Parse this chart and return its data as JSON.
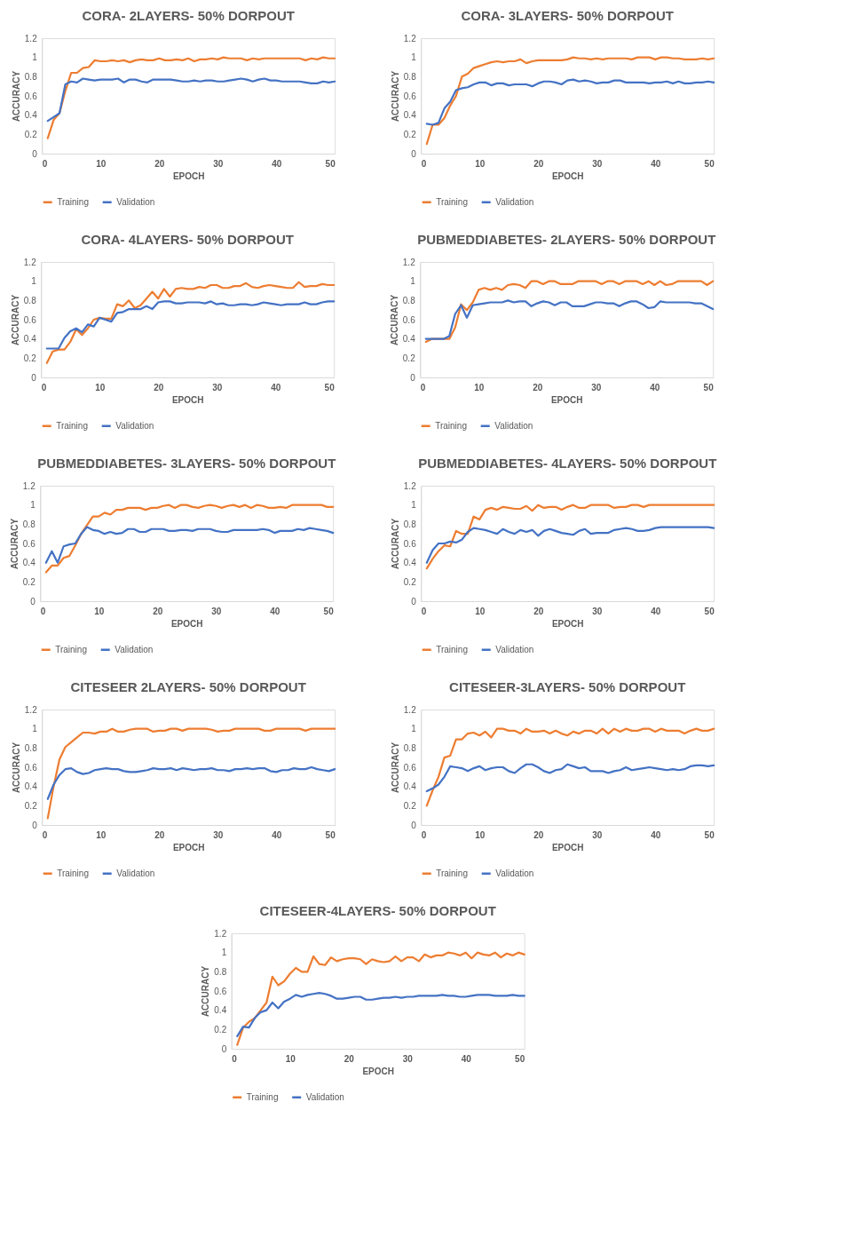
{
  "chart_data": [
    {
      "type": "line",
      "title": "CORA- 2LAYERS- 50% DORPOUT",
      "xlabel": "EPOCH",
      "ylabel": "ACCURACY",
      "xlim": [
        0,
        50
      ],
      "xticks": [
        0,
        10,
        20,
        30,
        40,
        50
      ],
      "ylim": [
        0,
        1.2
      ],
      "yticks": [
        0,
        0.2,
        0.4,
        0.6,
        0.8,
        1,
        1.2
      ],
      "grid": false,
      "legend": "bottom",
      "x": [
        1,
        2,
        3,
        4,
        5,
        6,
        7,
        8,
        9,
        10,
        11,
        12,
        13,
        14,
        15,
        16,
        17,
        18,
        19,
        20,
        21,
        22,
        23,
        24,
        25,
        26,
        27,
        28,
        29,
        30,
        31,
        32,
        33,
        34,
        35,
        36,
        37,
        38,
        39,
        40,
        41,
        42,
        43,
        44,
        45,
        46,
        47,
        48,
        49,
        50
      ],
      "series": [
        {
          "name": "Training",
          "color": "#ed7d31",
          "values": [
            0.16,
            0.35,
            0.42,
            0.65,
            0.84,
            0.84,
            0.89,
            0.9,
            0.97,
            0.96,
            0.96,
            0.97,
            0.96,
            0.97,
            0.95,
            0.97,
            0.98,
            0.97,
            0.97,
            0.99,
            0.97,
            0.97,
            0.98,
            0.97,
            0.99,
            0.96,
            0.98,
            0.98,
            0.99,
            0.98,
            1.0,
            0.99,
            0.99,
            0.99,
            0.97,
            0.99,
            0.98,
            0.99,
            0.99,
            0.99,
            0.99,
            0.99,
            0.99,
            0.99,
            0.97,
            0.99,
            0.98,
            1.0,
            0.99,
            0.99
          ]
        },
        {
          "name": "Validation",
          "color": "#4472c4",
          "values": [
            0.34,
            0.38,
            0.42,
            0.72,
            0.75,
            0.74,
            0.78,
            0.77,
            0.76,
            0.77,
            0.77,
            0.77,
            0.78,
            0.74,
            0.77,
            0.77,
            0.75,
            0.74,
            0.77,
            0.77,
            0.77,
            0.77,
            0.76,
            0.75,
            0.75,
            0.76,
            0.75,
            0.76,
            0.76,
            0.75,
            0.75,
            0.76,
            0.77,
            0.78,
            0.77,
            0.75,
            0.77,
            0.78,
            0.76,
            0.76,
            0.75,
            0.75,
            0.75,
            0.75,
            0.74,
            0.73,
            0.73,
            0.75,
            0.74,
            0.75
          ]
        }
      ]
    },
    {
      "type": "line",
      "title": "CORA- 3LAYERS- 50% DORPOUT",
      "xlabel": "EPOCH",
      "ylabel": "ACCURACY",
      "xlim": [
        0,
        50
      ],
      "xticks": [
        0,
        10,
        20,
        30,
        40,
        50
      ],
      "ylim": [
        0,
        1.2
      ],
      "yticks": [
        0,
        0.2,
        0.4,
        0.6,
        0.8,
        1,
        1.2
      ],
      "grid": false,
      "legend": "bottom",
      "x": [
        1,
        2,
        3,
        4,
        5,
        6,
        7,
        8,
        9,
        10,
        11,
        12,
        13,
        14,
        15,
        16,
        17,
        18,
        19,
        20,
        21,
        22,
        23,
        24,
        25,
        26,
        27,
        28,
        29,
        30,
        31,
        32,
        33,
        34,
        35,
        36,
        37,
        38,
        39,
        40,
        41,
        42,
        43,
        44,
        45,
        46,
        47,
        48,
        49,
        50
      ],
      "series": [
        {
          "name": "Training",
          "color": "#ed7d31",
          "values": [
            0.1,
            0.3,
            0.3,
            0.37,
            0.5,
            0.6,
            0.8,
            0.83,
            0.89,
            0.91,
            0.93,
            0.95,
            0.96,
            0.95,
            0.96,
            0.96,
            0.98,
            0.94,
            0.96,
            0.97,
            0.97,
            0.97,
            0.97,
            0.97,
            0.98,
            1.0,
            0.99,
            0.99,
            0.98,
            0.99,
            0.98,
            0.99,
            0.99,
            0.99,
            0.99,
            0.98,
            1.0,
            1.0,
            1.0,
            0.98,
            1.0,
            1.0,
            0.99,
            0.99,
            0.98,
            0.98,
            0.98,
            0.99,
            0.98,
            0.99
          ]
        },
        {
          "name": "Validation",
          "color": "#4472c4",
          "values": [
            0.31,
            0.3,
            0.32,
            0.47,
            0.54,
            0.66,
            0.68,
            0.69,
            0.72,
            0.74,
            0.74,
            0.71,
            0.73,
            0.73,
            0.71,
            0.72,
            0.72,
            0.72,
            0.7,
            0.73,
            0.75,
            0.75,
            0.74,
            0.72,
            0.76,
            0.77,
            0.75,
            0.76,
            0.75,
            0.73,
            0.74,
            0.74,
            0.76,
            0.76,
            0.74,
            0.74,
            0.74,
            0.74,
            0.73,
            0.74,
            0.74,
            0.75,
            0.73,
            0.75,
            0.73,
            0.73,
            0.74,
            0.74,
            0.75,
            0.74
          ]
        }
      ]
    },
    {
      "type": "line",
      "title": "CORA- 4LAYERS- 50% DORPOUT",
      "xlabel": "EPOCH",
      "ylabel": "ACCURACY",
      "xlim": [
        0,
        50
      ],
      "xticks": [
        0,
        10,
        20,
        30,
        40,
        50
      ],
      "ylim": [
        0,
        1.2
      ],
      "yticks": [
        0,
        0.2,
        0.4,
        0.6,
        0.8,
        1,
        1.2
      ],
      "grid": false,
      "legend": "bottom",
      "x": [
        1,
        2,
        3,
        4,
        5,
        6,
        7,
        8,
        9,
        10,
        11,
        12,
        13,
        14,
        15,
        16,
        17,
        18,
        19,
        20,
        21,
        22,
        23,
        24,
        25,
        26,
        27,
        28,
        29,
        30,
        31,
        32,
        33,
        34,
        35,
        36,
        37,
        38,
        39,
        40,
        41,
        42,
        43,
        44,
        45,
        46,
        47,
        48,
        49,
        50
      ],
      "series": [
        {
          "name": "Training",
          "color": "#ed7d31",
          "values": [
            0.15,
            0.27,
            0.29,
            0.29,
            0.37,
            0.5,
            0.44,
            0.51,
            0.6,
            0.62,
            0.61,
            0.61,
            0.76,
            0.74,
            0.8,
            0.72,
            0.75,
            0.82,
            0.89,
            0.82,
            0.92,
            0.84,
            0.92,
            0.93,
            0.92,
            0.92,
            0.94,
            0.93,
            0.96,
            0.96,
            0.93,
            0.93,
            0.95,
            0.95,
            0.98,
            0.94,
            0.93,
            0.95,
            0.96,
            0.95,
            0.94,
            0.93,
            0.93,
            0.99,
            0.94,
            0.95,
            0.95,
            0.97,
            0.96,
            0.96
          ]
        },
        {
          "name": "Validation",
          "color": "#4472c4",
          "values": [
            0.3,
            0.3,
            0.3,
            0.41,
            0.48,
            0.51,
            0.47,
            0.55,
            0.53,
            0.62,
            0.6,
            0.58,
            0.67,
            0.68,
            0.71,
            0.71,
            0.71,
            0.74,
            0.71,
            0.78,
            0.79,
            0.79,
            0.77,
            0.77,
            0.78,
            0.78,
            0.78,
            0.77,
            0.79,
            0.76,
            0.77,
            0.75,
            0.75,
            0.76,
            0.76,
            0.75,
            0.76,
            0.78,
            0.77,
            0.76,
            0.75,
            0.76,
            0.76,
            0.76,
            0.78,
            0.76,
            0.76,
            0.78,
            0.79,
            0.79
          ]
        }
      ]
    },
    {
      "type": "line",
      "title": "PUBMEDDIABETES- 2LAYERS- 50% DORPOUT",
      "xlabel": "EPOCH",
      "ylabel": "ACCURACY",
      "xlim": [
        0,
        50
      ],
      "xticks": [
        0,
        10,
        20,
        30,
        40,
        50
      ],
      "ylim": [
        0,
        1.2
      ],
      "yticks": [
        0,
        0.2,
        0.4,
        0.6,
        0.8,
        1,
        1.2
      ],
      "grid": false,
      "legend": "bottom",
      "x": [
        1,
        2,
        3,
        4,
        5,
        6,
        7,
        8,
        9,
        10,
        11,
        12,
        13,
        14,
        15,
        16,
        17,
        18,
        19,
        20,
        21,
        22,
        23,
        24,
        25,
        26,
        27,
        28,
        29,
        30,
        31,
        32,
        33,
        34,
        35,
        36,
        37,
        38,
        39,
        40,
        41,
        42,
        43,
        44,
        45,
        46,
        47,
        48,
        49,
        50
      ],
      "series": [
        {
          "name": "Training",
          "color": "#ed7d31",
          "values": [
            0.37,
            0.4,
            0.4,
            0.4,
            0.4,
            0.52,
            0.76,
            0.7,
            0.78,
            0.91,
            0.93,
            0.91,
            0.93,
            0.91,
            0.96,
            0.97,
            0.96,
            0.93,
            1.0,
            1.0,
            0.97,
            1.0,
            1.0,
            0.97,
            0.97,
            0.97,
            1.0,
            1.0,
            1.0,
            1.0,
            0.97,
            1.0,
            1.0,
            0.97,
            1.0,
            1.0,
            1.0,
            0.97,
            1.0,
            0.96,
            1.0,
            0.96,
            0.97,
            1.0,
            1.0,
            1.0,
            1.0,
            1.0,
            0.96,
            1.0
          ]
        },
        {
          "name": "Validation",
          "color": "#4472c4",
          "values": [
            0.4,
            0.4,
            0.4,
            0.4,
            0.43,
            0.66,
            0.75,
            0.62,
            0.75,
            0.76,
            0.77,
            0.78,
            0.78,
            0.78,
            0.8,
            0.78,
            0.79,
            0.79,
            0.74,
            0.77,
            0.79,
            0.78,
            0.75,
            0.78,
            0.78,
            0.74,
            0.74,
            0.74,
            0.76,
            0.78,
            0.78,
            0.77,
            0.77,
            0.74,
            0.77,
            0.79,
            0.79,
            0.76,
            0.72,
            0.73,
            0.79,
            0.78,
            0.78,
            0.78,
            0.78,
            0.78,
            0.77,
            0.77,
            0.74,
            0.71
          ]
        }
      ]
    },
    {
      "type": "line",
      "title": "PUBMEDDIABETES- 3LAYERS- 50% DORPOUT",
      "xlabel": "EPOCH",
      "ylabel": "ACCURACY",
      "xlim": [
        0,
        50
      ],
      "xticks": [
        0,
        10,
        20,
        30,
        40,
        50
      ],
      "ylim": [
        0,
        1.2
      ],
      "yticks": [
        0,
        0.2,
        0.4,
        0.6,
        0.8,
        1,
        1.2
      ],
      "grid": false,
      "legend": "bottom",
      "x": [
        1,
        2,
        3,
        4,
        5,
        6,
        7,
        8,
        9,
        10,
        11,
        12,
        13,
        14,
        15,
        16,
        17,
        18,
        19,
        20,
        21,
        22,
        23,
        24,
        25,
        26,
        27,
        28,
        29,
        30,
        31,
        32,
        33,
        34,
        35,
        36,
        37,
        38,
        39,
        40,
        41,
        42,
        43,
        44,
        45,
        46,
        47,
        48,
        49,
        50
      ],
      "series": [
        {
          "name": "Training",
          "color": "#ed7d31",
          "values": [
            0.3,
            0.37,
            0.37,
            0.45,
            0.47,
            0.58,
            0.7,
            0.79,
            0.88,
            0.88,
            0.92,
            0.9,
            0.95,
            0.95,
            0.97,
            0.97,
            0.97,
            0.95,
            0.97,
            0.97,
            0.99,
            1.0,
            0.97,
            1.0,
            1.0,
            0.98,
            0.97,
            0.99,
            1.0,
            0.99,
            0.97,
            0.99,
            1.0,
            0.98,
            1.0,
            0.97,
            1.0,
            0.99,
            0.97,
            0.97,
            0.98,
            0.97,
            1.0,
            1.0,
            1.0,
            1.0,
            1.0,
            1.0,
            0.98,
            0.98
          ]
        },
        {
          "name": "Validation",
          "color": "#4472c4",
          "values": [
            0.4,
            0.52,
            0.4,
            0.57,
            0.59,
            0.6,
            0.7,
            0.77,
            0.74,
            0.73,
            0.7,
            0.72,
            0.7,
            0.71,
            0.75,
            0.75,
            0.72,
            0.72,
            0.75,
            0.75,
            0.75,
            0.73,
            0.73,
            0.74,
            0.74,
            0.73,
            0.75,
            0.75,
            0.75,
            0.73,
            0.72,
            0.72,
            0.74,
            0.74,
            0.74,
            0.74,
            0.74,
            0.75,
            0.74,
            0.71,
            0.73,
            0.73,
            0.73,
            0.75,
            0.74,
            0.76,
            0.75,
            0.74,
            0.73,
            0.71
          ]
        }
      ]
    },
    {
      "type": "line",
      "title": "PUBMEDDIABETES- 4LAYERS- 50% DORPOUT",
      "xlabel": "EPOCH",
      "ylabel": "ACCURACY",
      "xlim": [
        0,
        50
      ],
      "xticks": [
        0,
        10,
        20,
        30,
        40,
        50
      ],
      "ylim": [
        0,
        1.2
      ],
      "yticks": [
        0,
        0.2,
        0.4,
        0.6,
        0.8,
        1,
        1.2
      ],
      "grid": false,
      "legend": "bottom",
      "x": [
        1,
        2,
        3,
        4,
        5,
        6,
        7,
        8,
        9,
        10,
        11,
        12,
        13,
        14,
        15,
        16,
        17,
        18,
        19,
        20,
        21,
        22,
        23,
        24,
        25,
        26,
        27,
        28,
        29,
        30,
        31,
        32,
        33,
        34,
        35,
        36,
        37,
        38,
        39,
        40,
        41,
        42,
        43,
        44,
        45,
        46,
        47,
        48,
        49,
        50
      ],
      "series": [
        {
          "name": "Training",
          "color": "#ed7d31",
          "values": [
            0.34,
            0.44,
            0.52,
            0.58,
            0.57,
            0.73,
            0.7,
            0.7,
            0.88,
            0.85,
            0.95,
            0.97,
            0.95,
            0.98,
            0.97,
            0.96,
            0.96,
            0.99,
            0.94,
            1.0,
            0.97,
            0.98,
            0.98,
            0.95,
            0.98,
            1.0,
            0.97,
            0.97,
            1.0,
            1.0,
            1.0,
            1.0,
            0.97,
            0.98,
            0.98,
            1.0,
            1.0,
            0.98,
            1.0,
            1.0,
            1.0,
            1.0,
            1.0,
            1.0,
            1.0,
            1.0,
            1.0,
            1.0,
            1.0,
            1.0
          ]
        },
        {
          "name": "Validation",
          "color": "#4472c4",
          "values": [
            0.4,
            0.53,
            0.6,
            0.6,
            0.62,
            0.61,
            0.64,
            0.72,
            0.76,
            0.75,
            0.74,
            0.72,
            0.7,
            0.75,
            0.72,
            0.7,
            0.74,
            0.72,
            0.74,
            0.68,
            0.73,
            0.75,
            0.73,
            0.71,
            0.7,
            0.69,
            0.73,
            0.75,
            0.7,
            0.71,
            0.71,
            0.71,
            0.74,
            0.75,
            0.76,
            0.75,
            0.73,
            0.73,
            0.74,
            0.76,
            0.77,
            0.77,
            0.77,
            0.77,
            0.77,
            0.77,
            0.77,
            0.77,
            0.77,
            0.76
          ]
        }
      ]
    },
    {
      "type": "line",
      "title": "CITESEER 2LAYERS- 50% DORPOUT",
      "xlabel": "EPOCH",
      "ylabel": "ACCURACY",
      "xlim": [
        0,
        50
      ],
      "xticks": [
        0,
        10,
        20,
        30,
        40,
        50
      ],
      "ylim": [
        0,
        1.2
      ],
      "yticks": [
        0,
        0.2,
        0.4,
        0.6,
        0.8,
        1,
        1.2
      ],
      "grid": false,
      "legend": "bottom",
      "x": [
        1,
        2,
        3,
        4,
        5,
        6,
        7,
        8,
        9,
        10,
        11,
        12,
        13,
        14,
        15,
        16,
        17,
        18,
        19,
        20,
        21,
        22,
        23,
        24,
        25,
        26,
        27,
        28,
        29,
        30,
        31,
        32,
        33,
        34,
        35,
        36,
        37,
        38,
        39,
        40,
        41,
        42,
        43,
        44,
        45,
        46,
        47,
        48,
        49,
        50
      ],
      "series": [
        {
          "name": "Training",
          "color": "#ed7d31",
          "values": [
            0.07,
            0.4,
            0.68,
            0.81,
            0.86,
            0.91,
            0.96,
            0.96,
            0.95,
            0.97,
            0.97,
            1.0,
            0.97,
            0.97,
            0.99,
            1.0,
            1.0,
            1.0,
            0.97,
            0.98,
            0.98,
            1.0,
            1.0,
            0.98,
            1.0,
            1.0,
            1.0,
            1.0,
            0.99,
            0.97,
            0.98,
            0.98,
            1.0,
            1.0,
            1.0,
            1.0,
            1.0,
            0.98,
            0.98,
            1.0,
            1.0,
            1.0,
            1.0,
            1.0,
            0.98,
            1.0,
            1.0,
            1.0,
            1.0,
            1.0
          ]
        },
        {
          "name": "Validation",
          "color": "#4472c4",
          "values": [
            0.27,
            0.42,
            0.52,
            0.58,
            0.59,
            0.55,
            0.53,
            0.54,
            0.57,
            0.58,
            0.59,
            0.58,
            0.58,
            0.56,
            0.55,
            0.55,
            0.56,
            0.57,
            0.59,
            0.58,
            0.58,
            0.59,
            0.57,
            0.59,
            0.58,
            0.57,
            0.58,
            0.58,
            0.59,
            0.57,
            0.57,
            0.56,
            0.58,
            0.58,
            0.59,
            0.58,
            0.59,
            0.59,
            0.56,
            0.55,
            0.57,
            0.57,
            0.59,
            0.58,
            0.58,
            0.6,
            0.58,
            0.57,
            0.56,
            0.58
          ]
        }
      ]
    },
    {
      "type": "line",
      "title": "CITESEER-3LAYERS- 50% DORPOUT",
      "xlabel": "EPOCH",
      "ylabel": "ACCURACY",
      "xlim": [
        0,
        50
      ],
      "xticks": [
        0,
        10,
        20,
        30,
        40,
        50
      ],
      "ylim": [
        0,
        1.2
      ],
      "yticks": [
        0,
        0.2,
        0.4,
        0.6,
        0.8,
        1,
        1.2
      ],
      "grid": false,
      "legend": "bottom",
      "x": [
        1,
        2,
        3,
        4,
        5,
        6,
        7,
        8,
        9,
        10,
        11,
        12,
        13,
        14,
        15,
        16,
        17,
        18,
        19,
        20,
        21,
        22,
        23,
        24,
        25,
        26,
        27,
        28,
        29,
        30,
        31,
        32,
        33,
        34,
        35,
        36,
        37,
        38,
        39,
        40,
        41,
        42,
        43,
        44,
        45,
        46,
        47,
        48,
        49,
        50
      ],
      "series": [
        {
          "name": "Training",
          "color": "#ed7d31",
          "values": [
            0.2,
            0.36,
            0.5,
            0.7,
            0.72,
            0.89,
            0.89,
            0.95,
            0.96,
            0.93,
            0.97,
            0.91,
            1.0,
            1.0,
            0.98,
            0.98,
            0.95,
            1.0,
            0.97,
            0.97,
            0.98,
            0.95,
            0.98,
            0.95,
            0.93,
            0.97,
            0.95,
            0.98,
            0.98,
            0.95,
            1.0,
            0.95,
            1.0,
            0.97,
            1.0,
            0.98,
            0.98,
            1.0,
            1.0,
            0.97,
            1.0,
            0.98,
            0.98,
            0.98,
            0.95,
            0.98,
            1.0,
            0.98,
            0.98,
            1.0
          ]
        },
        {
          "name": "Validation",
          "color": "#4472c4",
          "values": [
            0.35,
            0.38,
            0.42,
            0.5,
            0.61,
            0.6,
            0.59,
            0.56,
            0.59,
            0.61,
            0.57,
            0.59,
            0.6,
            0.6,
            0.56,
            0.54,
            0.59,
            0.63,
            0.63,
            0.6,
            0.56,
            0.54,
            0.57,
            0.58,
            0.63,
            0.61,
            0.59,
            0.6,
            0.56,
            0.56,
            0.56,
            0.54,
            0.56,
            0.57,
            0.6,
            0.57,
            0.58,
            0.59,
            0.6,
            0.59,
            0.58,
            0.57,
            0.58,
            0.57,
            0.58,
            0.61,
            0.62,
            0.62,
            0.61,
            0.62
          ]
        }
      ]
    },
    {
      "type": "line",
      "title": "CITESEER-4LAYERS- 50% DORPOUT",
      "xlabel": "EPOCH",
      "ylabel": "ACCURACY",
      "xlim": [
        0,
        50
      ],
      "xticks": [
        0,
        10,
        20,
        30,
        40,
        50
      ],
      "ylim": [
        0,
        1.2
      ],
      "yticks": [
        0,
        0.2,
        0.4,
        0.6,
        0.8,
        1,
        1.2
      ],
      "grid": false,
      "legend": "bottom",
      "x": [
        1,
        2,
        3,
        4,
        5,
        6,
        7,
        8,
        9,
        10,
        11,
        12,
        13,
        14,
        15,
        16,
        17,
        18,
        19,
        20,
        21,
        22,
        23,
        24,
        25,
        26,
        27,
        28,
        29,
        30,
        31,
        32,
        33,
        34,
        35,
        36,
        37,
        38,
        39,
        40,
        41,
        42,
        43,
        44,
        45,
        46,
        47,
        48,
        49,
        50
      ],
      "series": [
        {
          "name": "Training",
          "color": "#ed7d31",
          "values": [
            0.04,
            0.22,
            0.28,
            0.32,
            0.4,
            0.48,
            0.75,
            0.66,
            0.7,
            0.78,
            0.84,
            0.8,
            0.8,
            0.96,
            0.88,
            0.87,
            0.95,
            0.91,
            0.93,
            0.94,
            0.94,
            0.93,
            0.88,
            0.93,
            0.91,
            0.9,
            0.91,
            0.96,
            0.91,
            0.95,
            0.95,
            0.91,
            0.98,
            0.95,
            0.97,
            0.97,
            1.0,
            0.99,
            0.97,
            1.0,
            0.94,
            1.0,
            0.98,
            0.97,
            1.0,
            0.95,
            0.99,
            0.97,
            1.0,
            0.98
          ]
        },
        {
          "name": "Validation",
          "color": "#4472c4",
          "values": [
            0.13,
            0.23,
            0.22,
            0.32,
            0.38,
            0.4,
            0.48,
            0.42,
            0.49,
            0.52,
            0.56,
            0.54,
            0.56,
            0.57,
            0.58,
            0.57,
            0.55,
            0.52,
            0.52,
            0.53,
            0.54,
            0.54,
            0.51,
            0.51,
            0.52,
            0.53,
            0.53,
            0.54,
            0.53,
            0.54,
            0.54,
            0.55,
            0.55,
            0.55,
            0.55,
            0.56,
            0.55,
            0.55,
            0.54,
            0.54,
            0.55,
            0.56,
            0.56,
            0.56,
            0.55,
            0.55,
            0.55,
            0.56,
            0.55,
            0.55
          ]
        }
      ]
    }
  ]
}
